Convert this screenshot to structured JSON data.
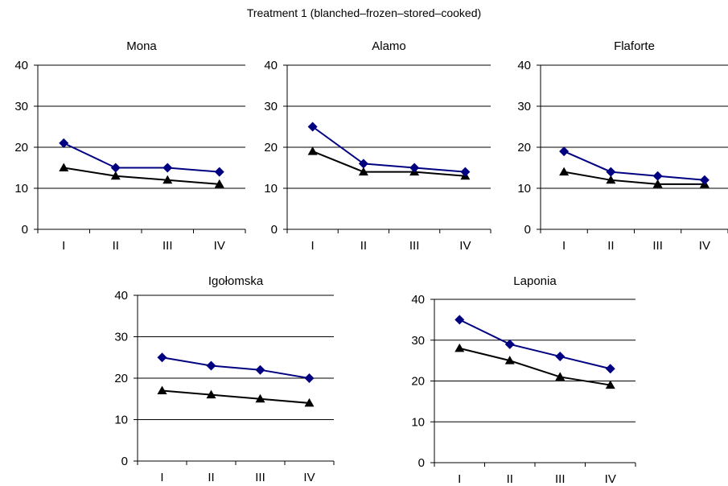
{
  "figure_title": "Treatment 1 (blanched–frozen–stored–cooked)",
  "colors": {
    "series_a": "#000080",
    "series_b": "#000000",
    "grid": "#000000"
  },
  "chart_data": [
    {
      "type": "line",
      "title": "Mona",
      "categories": [
        "I",
        "II",
        "III",
        "IV"
      ],
      "ylim": [
        0,
        40
      ],
      "yticks": [
        0,
        10,
        20,
        30,
        40
      ],
      "grid": true,
      "series": [
        {
          "marker": "diamond",
          "values": [
            21,
            15,
            15,
            14
          ]
        },
        {
          "marker": "triangle",
          "values": [
            15,
            13,
            12,
            11
          ]
        }
      ]
    },
    {
      "type": "line",
      "title": "Alamo",
      "categories": [
        "I",
        "II",
        "III",
        "IV"
      ],
      "ylim": [
        0,
        40
      ],
      "yticks": [
        0,
        10,
        20,
        30,
        40
      ],
      "grid": true,
      "series": [
        {
          "marker": "diamond",
          "values": [
            25,
            16,
            15,
            14
          ]
        },
        {
          "marker": "triangle",
          "values": [
            19,
            14,
            14,
            13
          ]
        }
      ]
    },
    {
      "type": "line",
      "title": "Flaforte",
      "categories": [
        "I",
        "II",
        "III",
        "IV"
      ],
      "ylim": [
        0,
        40
      ],
      "yticks": [
        0,
        10,
        20,
        30,
        40
      ],
      "grid": true,
      "series": [
        {
          "marker": "diamond",
          "values": [
            19,
            14,
            13,
            12
          ]
        },
        {
          "marker": "triangle",
          "values": [
            14,
            12,
            11,
            11
          ]
        }
      ]
    },
    {
      "type": "line",
      "title": "Igołomska",
      "categories": [
        "I",
        "II",
        "III",
        "IV"
      ],
      "ylim": [
        0,
        40
      ],
      "yticks": [
        0,
        10,
        20,
        30,
        40
      ],
      "grid": true,
      "series": [
        {
          "marker": "diamond",
          "values": [
            25,
            23,
            22,
            20
          ]
        },
        {
          "marker": "triangle",
          "values": [
            17,
            16,
            15,
            14
          ]
        }
      ]
    },
    {
      "type": "line",
      "title": "Laponia",
      "categories": [
        "I",
        "II",
        "III",
        "IV"
      ],
      "ylim": [
        0,
        40
      ],
      "yticks": [
        0,
        10,
        20,
        30,
        40
      ],
      "grid": true,
      "series": [
        {
          "marker": "diamond",
          "values": [
            35,
            29,
            26,
            23
          ]
        },
        {
          "marker": "triangle",
          "values": [
            28,
            25,
            21,
            19
          ]
        }
      ]
    }
  ]
}
